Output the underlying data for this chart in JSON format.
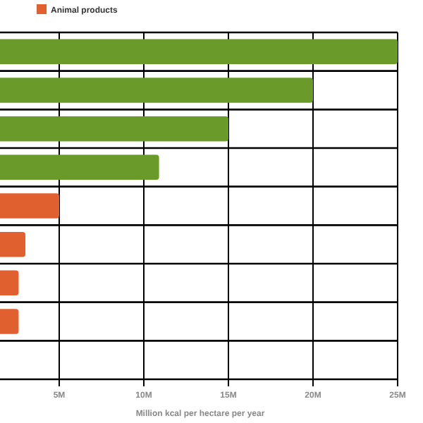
{
  "chart_data": {
    "type": "bar",
    "orientation": "horizontal",
    "categories": [
      null,
      null,
      null,
      null,
      null,
      null,
      null,
      null,
      null
    ],
    "series": [
      {
        "color": "#6a9a2a",
        "values": [
          25,
          20,
          15,
          10.9,
          null,
          null,
          null,
          null,
          null
        ]
      },
      {
        "name": "Animal products",
        "color": "#e06030",
        "values": [
          null,
          null,
          null,
          null,
          5,
          3,
          2.6,
          2.6,
          null
        ]
      }
    ],
    "xlim": [
      0,
      25
    ],
    "xticks": [
      {
        "value": 5,
        "label": "5M"
      },
      {
        "value": 10,
        "label": "10M"
      },
      {
        "value": 15,
        "label": "15M"
      },
      {
        "value": 20,
        "label": "20M"
      },
      {
        "value": 25,
        "label": "25M"
      }
    ],
    "xlabel": "Million kcal per hectare per year",
    "grid": true,
    "legend": "top left"
  }
}
